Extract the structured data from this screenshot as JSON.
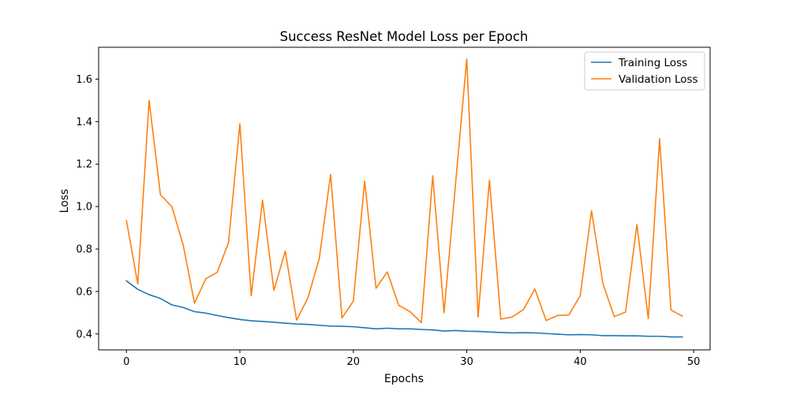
{
  "chart_data": {
    "type": "line",
    "title": "Success ResNet Model Loss per Epoch",
    "xlabel": "Epochs",
    "ylabel": "Loss",
    "xlim": [
      -2.45,
      51.45
    ],
    "ylim": [
      0.325,
      1.75
    ],
    "xticks": [
      0,
      10,
      20,
      30,
      40,
      50
    ],
    "yticks": [
      0.4,
      0.6,
      0.8,
      1.0,
      1.2,
      1.4,
      1.6
    ],
    "ytick_labels": [
      "0.4",
      "0.6",
      "0.8",
      "1.0",
      "1.2",
      "1.4",
      "1.6"
    ],
    "grid": false,
    "legend_position": "top-right",
    "x": [
      0,
      1,
      2,
      3,
      4,
      5,
      6,
      7,
      8,
      9,
      10,
      11,
      12,
      13,
      14,
      15,
      16,
      17,
      18,
      19,
      20,
      21,
      22,
      23,
      24,
      25,
      26,
      27,
      28,
      29,
      30,
      31,
      32,
      33,
      34,
      35,
      36,
      37,
      38,
      39,
      40,
      41,
      42,
      43,
      44,
      45,
      46,
      47,
      48,
      49
    ],
    "series": [
      {
        "name": "Training Loss",
        "color": "#1f77b4",
        "values": [
          0.65,
          0.61,
          0.585,
          0.567,
          0.537,
          0.525,
          0.505,
          0.498,
          0.487,
          0.477,
          0.468,
          0.462,
          0.459,
          0.455,
          0.451,
          0.447,
          0.445,
          0.441,
          0.437,
          0.436,
          0.434,
          0.429,
          0.424,
          0.427,
          0.424,
          0.424,
          0.421,
          0.419,
          0.414,
          0.416,
          0.413,
          0.412,
          0.409,
          0.407,
          0.405,
          0.406,
          0.405,
          0.402,
          0.399,
          0.396,
          0.397,
          0.396,
          0.392,
          0.392,
          0.391,
          0.391,
          0.389,
          0.389,
          0.386,
          0.386
        ]
      },
      {
        "name": "Validation Loss",
        "color": "#ff7f0e",
        "values": [
          0.935,
          0.635,
          1.5,
          1.055,
          1.0,
          0.82,
          0.545,
          0.66,
          0.69,
          0.83,
          1.39,
          0.58,
          1.03,
          0.605,
          0.79,
          0.465,
          0.57,
          0.755,
          1.152,
          0.475,
          0.555,
          1.12,
          0.615,
          0.692,
          0.535,
          0.505,
          0.453,
          1.145,
          0.5,
          1.1,
          1.695,
          0.48,
          1.125,
          0.47,
          0.48,
          0.515,
          0.612,
          0.463,
          0.487,
          0.489,
          0.58,
          0.98,
          0.637,
          0.482,
          0.503,
          0.915,
          0.472,
          1.32,
          0.513,
          0.484
        ]
      }
    ]
  }
}
